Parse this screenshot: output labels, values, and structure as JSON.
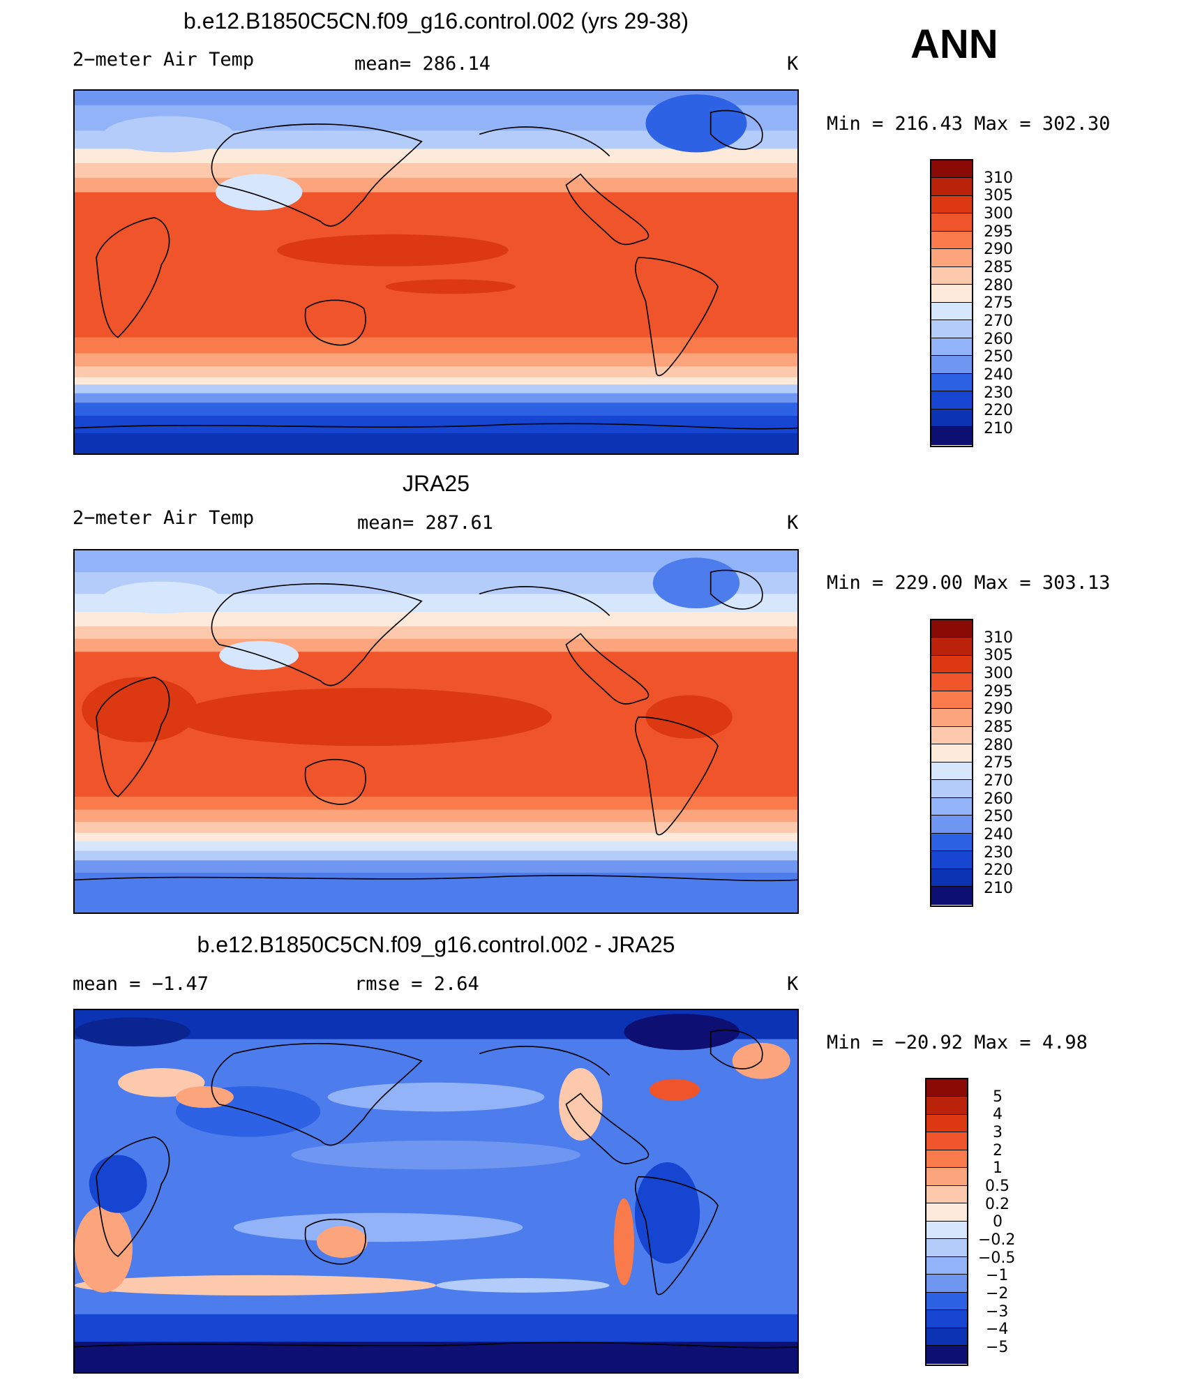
{
  "season_label": "ANN",
  "palette": {
    "temp": [
      "#0d0f73",
      "#0a2490",
      "#0b33b4",
      "#1545d1",
      "#2d62e4",
      "#4d7cec",
      "#6f97f2",
      "#92b3f7",
      "#b4ccfa",
      "#d6e6fc",
      "#fdeadb",
      "#fdc9ac",
      "#fca57d",
      "#f97a4a",
      "#f0542a",
      "#dc3812",
      "#ba220a",
      "#8a0b05"
    ],
    "diff": [
      "#0d0f73",
      "#0a2490",
      "#0b33b4",
      "#1545d1",
      "#2d62e4",
      "#4d7cec",
      "#6f97f2",
      "#92b3f7",
      "#b4ccfa",
      "#d6e6fc",
      "#fdeadb",
      "#fdc9ac",
      "#fca57d",
      "#f97a4a",
      "#f0542a",
      "#dc3812",
      "#ba220a",
      "#8a0b05"
    ]
  },
  "panels": [
    {
      "title": "b.e12.B1850C5CN.f09_g16.control.002 (yrs 29-38)",
      "left_label": "2−meter Air Temp",
      "center_label": "mean=  286.14",
      "units": "K",
      "minmax": "Min  =  216.43  Max  =  302.30",
      "colorbar_labels": [
        "310",
        "305",
        "300",
        "295",
        "290",
        "285",
        "280",
        "275",
        "270",
        "260",
        "250",
        "240",
        "230",
        "220",
        "210"
      ]
    },
    {
      "title": "JRA25",
      "left_label": "2−meter Air Temp",
      "center_label": "mean=  287.61",
      "units": "K",
      "minmax": "Min  =  229.00  Max  =  303.13",
      "colorbar_labels": [
        "310",
        "305",
        "300",
        "295",
        "290",
        "285",
        "280",
        "275",
        "270",
        "260",
        "250",
        "240",
        "230",
        "220",
        "210"
      ]
    },
    {
      "title": "b.e12.B1850C5CN.f09_g16.control.002 - JRA25",
      "left_label": "mean  =    −1.47",
      "center_label": "rmse  =     2.64",
      "units": "K",
      "minmax": "Min  =  −20.92  Max  =     4.98",
      "colorbar_labels": [
        "5",
        "4",
        "3",
        "2",
        "1",
        "0.5",
        "0.2",
        "0",
        "−0.2",
        "−0.5",
        "−1",
        "−2",
        "−3",
        "−4",
        "−5"
      ]
    }
  ]
}
